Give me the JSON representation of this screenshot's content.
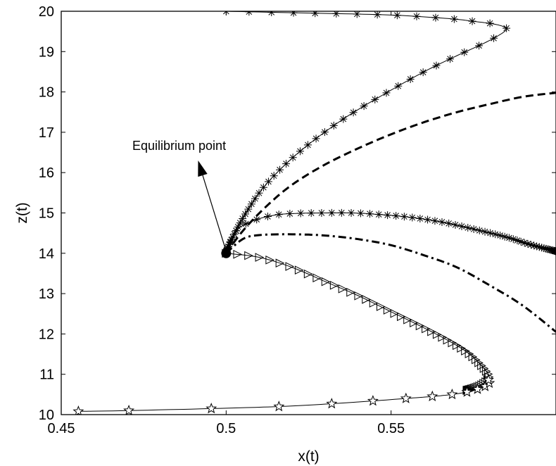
{
  "chart_data": {
    "type": "line",
    "title": "",
    "xlabel": "x(t)",
    "ylabel": "z(t)",
    "xlim": [
      0.45,
      0.6
    ],
    "ylim": [
      10,
      20
    ],
    "xticks": [
      0.45,
      0.5,
      0.55
    ],
    "xtick_labels": [
      "0.45",
      "0.5",
      "0.55"
    ],
    "yticks": [
      10,
      11,
      12,
      13,
      14,
      15,
      16,
      17,
      18,
      19,
      20
    ],
    "ytick_labels": [
      "10",
      "11",
      "12",
      "13",
      "14",
      "15",
      "16",
      "17",
      "18",
      "19",
      "20"
    ],
    "grid": false,
    "legend": "none",
    "equilibrium": {
      "x": 0.5,
      "z": 14.0
    },
    "annotation": {
      "text": "Equilibrium point",
      "from": [
        0.5,
        14.05
      ],
      "to": [
        0.4915,
        16.3
      ]
    },
    "series": [
      {
        "style": "solid",
        "marker": "asterisk",
        "x": [
          0.5,
          0.522,
          0.54,
          0.552,
          0.562,
          0.57,
          0.576,
          0.58,
          0.583,
          0.5845,
          0.585,
          0.583,
          0.578,
          0.57,
          0.56,
          0.548,
          0.535,
          0.522,
          0.512,
          0.506,
          0.502,
          0.5
        ],
        "z": [
          20.0,
          19.96,
          19.93,
          19.9,
          19.85,
          19.8,
          19.74,
          19.7,
          19.65,
          19.6,
          19.55,
          19.42,
          19.2,
          18.9,
          18.5,
          17.95,
          17.3,
          16.5,
          15.7,
          15.0,
          14.4,
          14.05
        ]
      },
      {
        "style": "dashed",
        "marker": "none",
        "x": [
          0.5,
          0.505,
          0.512,
          0.52,
          0.53,
          0.54,
          0.55,
          0.56,
          0.57,
          0.58,
          0.59,
          0.6
        ],
        "z": [
          14.0,
          14.55,
          15.15,
          15.7,
          16.2,
          16.6,
          16.95,
          17.25,
          17.5,
          17.7,
          17.88,
          17.98
        ]
      },
      {
        "style": "solid",
        "marker": "asterisk",
        "x": [
          0.5,
          0.503,
          0.508,
          0.515,
          0.522,
          0.53,
          0.538,
          0.545,
          0.555,
          0.565,
          0.575,
          0.585,
          0.592,
          0.6
        ],
        "z": [
          14.0,
          14.55,
          14.8,
          14.95,
          14.99,
          15.0,
          15.0,
          14.97,
          14.9,
          14.78,
          14.6,
          14.4,
          14.22,
          14.05
        ]
      },
      {
        "style": "dashdot",
        "marker": "none",
        "x": [
          0.5,
          0.505,
          0.51,
          0.52,
          0.53,
          0.54,
          0.55,
          0.56,
          0.57,
          0.58,
          0.59,
          0.6
        ],
        "z": [
          14.0,
          14.35,
          14.45,
          14.47,
          14.44,
          14.35,
          14.2,
          13.95,
          13.65,
          13.2,
          12.7,
          12.05
        ]
      },
      {
        "style": "solid",
        "marker": "triangle-right",
        "x": [
          0.5,
          0.51,
          0.52,
          0.53,
          0.54,
          0.55,
          0.56,
          0.567,
          0.573,
          0.577,
          0.5795,
          0.5795,
          0.5785,
          0.5765,
          0.573
        ],
        "z": [
          14.0,
          13.9,
          13.65,
          13.3,
          12.95,
          12.55,
          12.15,
          11.85,
          11.55,
          11.25,
          11.0,
          10.9,
          10.8,
          10.7,
          10.6
        ]
      },
      {
        "style": "solid",
        "marker": "pentagram",
        "x": [
          0.4552,
          0.4705,
          0.4955,
          0.516,
          0.532,
          0.5445,
          0.5545,
          0.5625,
          0.5685,
          0.573,
          0.5762,
          0.5785,
          0.5798,
          0.5795
        ],
        "z": [
          10.08,
          10.1,
          10.15,
          10.2,
          10.27,
          10.34,
          10.4,
          10.45,
          10.5,
          10.56,
          10.63,
          10.7,
          10.78,
          10.86
        ]
      }
    ]
  }
}
